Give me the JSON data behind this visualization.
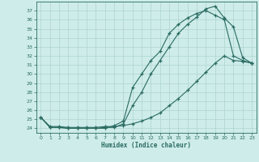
{
  "xlabel": "Humidex (Indice chaleur)",
  "bg_color": "#ceecea",
  "grid_color": "#aed4d0",
  "line_color": "#2a6b62",
  "xlim": [
    -0.5,
    23.5
  ],
  "ylim": [
    23.5,
    38.0
  ],
  "xticks": [
    0,
    1,
    2,
    3,
    4,
    5,
    6,
    7,
    8,
    9,
    10,
    11,
    12,
    13,
    14,
    15,
    16,
    17,
    18,
    19,
    20,
    21,
    22,
    23
  ],
  "yticks": [
    24,
    25,
    26,
    27,
    28,
    29,
    30,
    31,
    32,
    33,
    34,
    35,
    36,
    37
  ],
  "line1_x": [
    0,
    1,
    2,
    3,
    4,
    5,
    6,
    7,
    8,
    9,
    10,
    11,
    12,
    13,
    14,
    15,
    16,
    17,
    18,
    19,
    20,
    21,
    22,
    23
  ],
  "line1_y": [
    25.2,
    24.1,
    24.1,
    24.0,
    24.0,
    24.0,
    24.0,
    24.1,
    24.1,
    24.5,
    26.5,
    28.0,
    30.0,
    31.5,
    33.0,
    34.5,
    35.5,
    36.3,
    37.2,
    37.5,
    36.2,
    35.2,
    31.8,
    31.2
  ],
  "line2_x": [
    0,
    1,
    2,
    3,
    4,
    5,
    6,
    7,
    8,
    9,
    10,
    11,
    12,
    13,
    14,
    15,
    16,
    17,
    18,
    19,
    20,
    21,
    22,
    23
  ],
  "line2_y": [
    25.2,
    24.1,
    24.1,
    24.0,
    24.0,
    24.0,
    24.0,
    24.0,
    24.3,
    24.8,
    28.5,
    30.0,
    31.5,
    32.5,
    34.5,
    35.5,
    36.2,
    36.7,
    37.0,
    36.5,
    36.0,
    32.0,
    31.5,
    31.2
  ],
  "line3_x": [
    0,
    1,
    2,
    3,
    4,
    5,
    6,
    7,
    8,
    9,
    10,
    11,
    12,
    13,
    14,
    15,
    16,
    17,
    18,
    19,
    20,
    21,
    22,
    23
  ],
  "line3_y": [
    25.2,
    24.2,
    24.2,
    24.1,
    24.1,
    24.1,
    24.1,
    24.2,
    24.2,
    24.3,
    24.5,
    24.8,
    25.2,
    25.7,
    26.5,
    27.3,
    28.2,
    29.2,
    30.2,
    31.2,
    32.0,
    31.5,
    31.4,
    31.2
  ]
}
